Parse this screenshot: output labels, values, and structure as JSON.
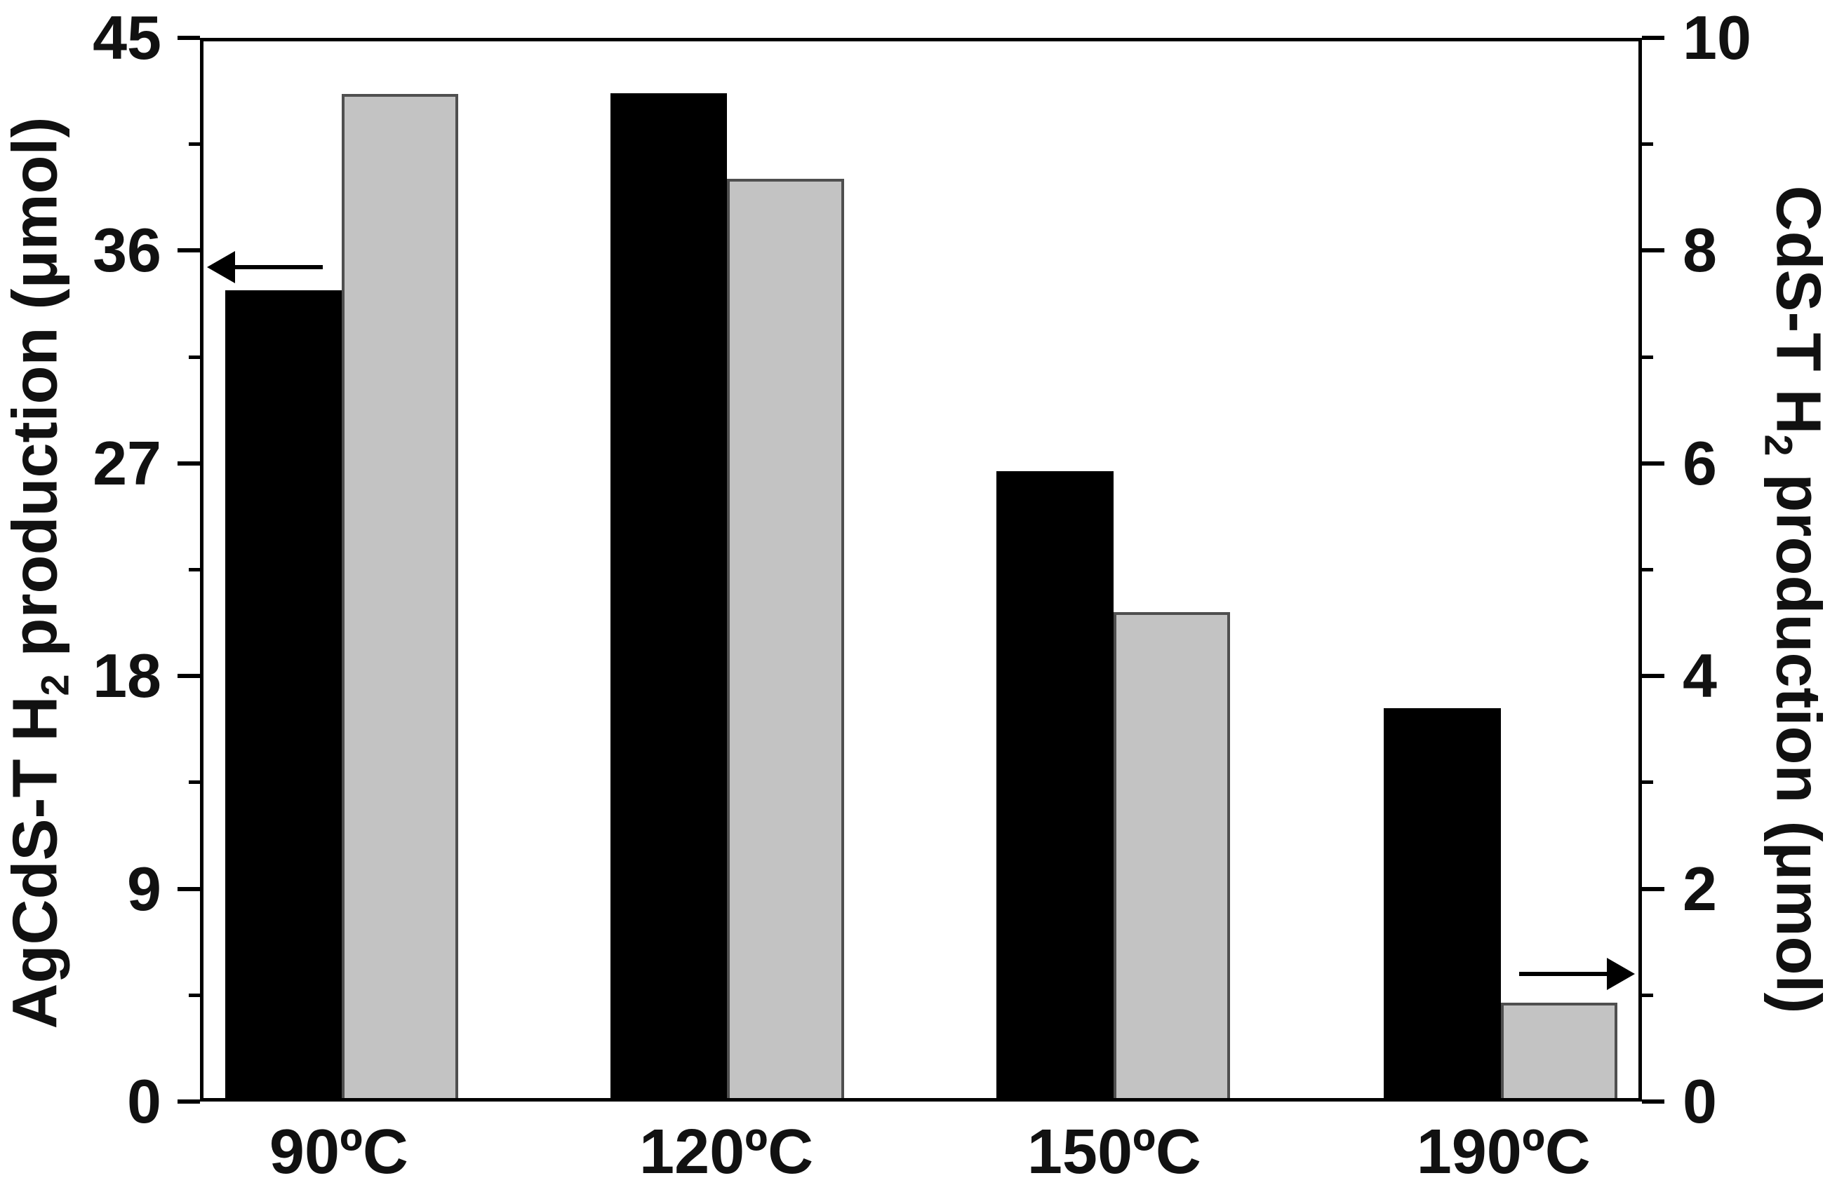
{
  "chart_data": {
    "type": "bar",
    "categories": [
      "90ºC",
      "120ºC",
      "150ºC",
      "190ºC"
    ],
    "series": [
      {
        "name": "AgCdS-T H2 production",
        "axis": "left",
        "color": "#000000",
        "values": [
          34.4,
          42.8,
          26.7,
          16.6
        ]
      },
      {
        "name": "CdS-T H2 production",
        "axis": "right",
        "color": "#c3c3c3",
        "values": [
          9.5,
          8.7,
          4.6,
          0.9
        ]
      }
    ],
    "left_axis": {
      "label_pre": "AgCdS-T H",
      "label_sub": "2",
      "label_post": " production (μmol)",
      "ticks": [
        0,
        9,
        18,
        27,
        36,
        45
      ],
      "minor_ticks": [
        4.5,
        13.5,
        22.5,
        31.5,
        40.5
      ],
      "range": [
        0,
        45
      ]
    },
    "right_axis": {
      "label_pre": "CdS-T H",
      "label_sub": "2",
      "label_post": " production (μmol)",
      "ticks": [
        0,
        2,
        4,
        6,
        8,
        10
      ],
      "minor_ticks": [
        1,
        3,
        5,
        7,
        9
      ],
      "range": [
        0,
        10
      ]
    },
    "annotations": [
      {
        "type": "arrow",
        "direction": "left",
        "points_to": "left-axis",
        "axis": "left",
        "value": 35.3
      },
      {
        "type": "arrow",
        "direction": "right",
        "points_to": "right-axis",
        "axis": "right",
        "value": 1.2
      }
    ],
    "legend": "none",
    "grid": false,
    "frame": "box"
  },
  "colors": {
    "bar_black": "#000000",
    "bar_gray": "#c3c3c3",
    "bar_gray_border": "#4f4f4f",
    "axis": "#000000",
    "text": "#111111",
    "background": "#ffffff"
  }
}
